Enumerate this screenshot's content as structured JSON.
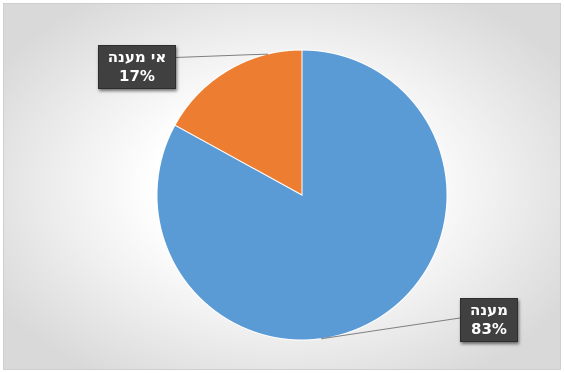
{
  "chart_data": {
    "type": "pie",
    "title": "",
    "categories": [
      "מענה",
      "אי מענה"
    ],
    "values": [
      83,
      17
    ],
    "value_labels": [
      "83%",
      "17%"
    ],
    "colors": [
      "#5B9BD5",
      "#ED7D31"
    ],
    "start_angle_deg": 0,
    "direction": "clockwise",
    "legend": "none",
    "data_labels": "callout-boxes"
  }
}
